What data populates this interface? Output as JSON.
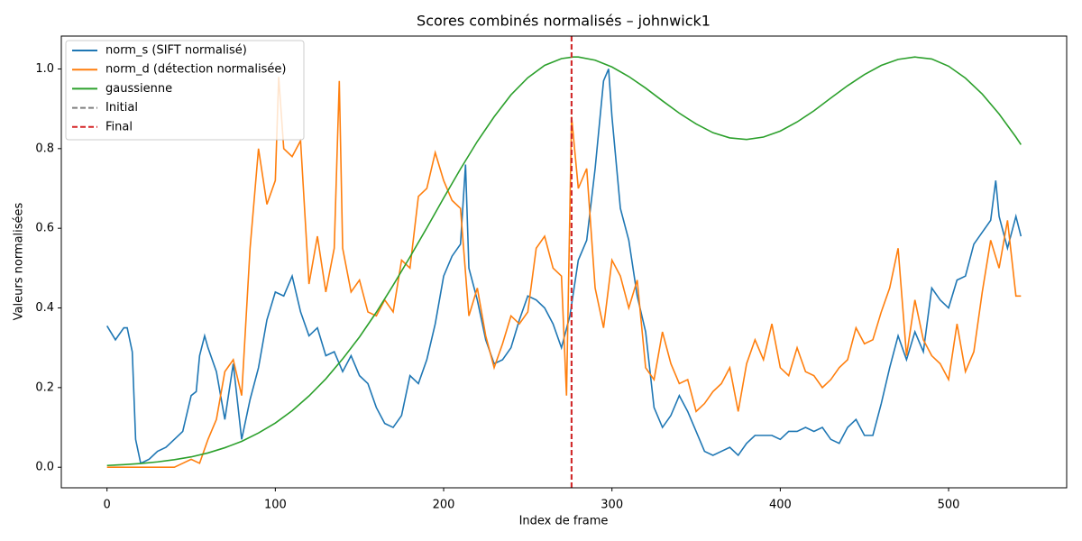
{
  "chart_data": {
    "type": "line",
    "title": "Scores combinés normalisés – johnwick1",
    "xlabel": "Index de frame",
    "ylabel": "Valeurs normalisées",
    "xlim": [
      -27.15,
      570.15
    ],
    "ylim": [
      -0.0516,
      1.0826
    ],
    "xticks": [
      0,
      100,
      200,
      300,
      400,
      500
    ],
    "yticks": [
      {
        "value": 0,
        "label": "0.0"
      },
      0.2,
      0.4,
      0.6,
      0.8,
      {
        "value": 1,
        "label": "1.0"
      }
    ],
    "grid": false,
    "legend": "upper left",
    "series": [
      {
        "name": "norm_s (SIFT normalisé)",
        "color": "#1f77b4",
        "x": [
          0,
          5,
          10,
          12,
          15,
          17,
          20,
          25,
          30,
          35,
          40,
          45,
          50,
          53,
          55,
          58,
          60,
          65,
          70,
          75,
          80,
          85,
          90,
          95,
          100,
          105,
          110,
          115,
          120,
          125,
          130,
          135,
          140,
          145,
          150,
          155,
          160,
          165,
          170,
          175,
          180,
          185,
          190,
          195,
          200,
          205,
          210,
          213,
          215,
          220,
          225,
          230,
          235,
          240,
          245,
          250,
          255,
          260,
          265,
          270,
          275,
          280,
          285,
          290,
          295,
          298,
          300,
          305,
          310,
          315,
          320,
          325,
          330,
          335,
          340,
          345,
          350,
          355,
          360,
          365,
          370,
          375,
          380,
          385,
          390,
          395,
          400,
          405,
          410,
          415,
          420,
          425,
          430,
          435,
          440,
          445,
          450,
          455,
          460,
          465,
          470,
          475,
          480,
          485,
          490,
          495,
          500,
          505,
          510,
          515,
          520,
          525,
          528,
          530,
          535,
          540,
          543
        ],
        "values": [
          0.355,
          0.32,
          0.35,
          0.35,
          0.29,
          0.07,
          0.01,
          0.02,
          0.04,
          0.05,
          0.07,
          0.09,
          0.18,
          0.19,
          0.28,
          0.33,
          0.3,
          0.24,
          0.12,
          0.26,
          0.07,
          0.17,
          0.25,
          0.37,
          0.44,
          0.43,
          0.48,
          0.39,
          0.33,
          0.35,
          0.28,
          0.29,
          0.24,
          0.28,
          0.23,
          0.21,
          0.15,
          0.11,
          0.1,
          0.13,
          0.23,
          0.21,
          0.27,
          0.36,
          0.48,
          0.53,
          0.56,
          0.76,
          0.5,
          0.42,
          0.32,
          0.26,
          0.27,
          0.3,
          0.37,
          0.43,
          0.42,
          0.4,
          0.36,
          0.3,
          0.38,
          0.52,
          0.57,
          0.75,
          0.97,
          1.0,
          0.88,
          0.65,
          0.57,
          0.43,
          0.34,
          0.15,
          0.1,
          0.13,
          0.18,
          0.14,
          0.09,
          0.04,
          0.03,
          0.04,
          0.05,
          0.03,
          0.06,
          0.08,
          0.08,
          0.08,
          0.07,
          0.09,
          0.09,
          0.1,
          0.09,
          0.1,
          0.07,
          0.06,
          0.1,
          0.12,
          0.08,
          0.08,
          0.16,
          0.25,
          0.33,
          0.27,
          0.34,
          0.29,
          0.45,
          0.42,
          0.4,
          0.47,
          0.48,
          0.56,
          0.59,
          0.62,
          0.72,
          0.63,
          0.55,
          0.63,
          0.58
        ]
      },
      {
        "name": "norm_d (détection normalisée)",
        "color": "#ff7f0e",
        "x": [
          0,
          5,
          10,
          15,
          20,
          25,
          30,
          35,
          40,
          45,
          50,
          55,
          60,
          65,
          70,
          75,
          80,
          85,
          90,
          95,
          100,
          102,
          105,
          110,
          115,
          120,
          125,
          130,
          135,
          138,
          140,
          145,
          150,
          155,
          160,
          165,
          170,
          175,
          180,
          185,
          190,
          195,
          200,
          205,
          210,
          215,
          220,
          225,
          230,
          235,
          240,
          245,
          250,
          255,
          260,
          265,
          270,
          273,
          276,
          280,
          285,
          290,
          295,
          300,
          305,
          310,
          315,
          320,
          325,
          330,
          335,
          340,
          345,
          350,
          355,
          360,
          365,
          370,
          375,
          380,
          385,
          390,
          395,
          400,
          405,
          410,
          415,
          420,
          425,
          430,
          435,
          440,
          445,
          450,
          455,
          460,
          465,
          470,
          475,
          480,
          485,
          490,
          495,
          500,
          505,
          510,
          515,
          520,
          525,
          530,
          535,
          540,
          543
        ],
        "values": [
          0,
          0,
          0,
          0,
          0,
          0,
          0,
          0,
          0,
          0.01,
          0.02,
          0.01,
          0.07,
          0.12,
          0.24,
          0.27,
          0.18,
          0.55,
          0.8,
          0.66,
          0.72,
          0.98,
          0.8,
          0.78,
          0.82,
          0.46,
          0.58,
          0.44,
          0.55,
          0.97,
          0.55,
          0.44,
          0.47,
          0.39,
          0.38,
          0.42,
          0.39,
          0.52,
          0.5,
          0.68,
          0.7,
          0.79,
          0.72,
          0.67,
          0.65,
          0.38,
          0.45,
          0.33,
          0.25,
          0.31,
          0.38,
          0.36,
          0.39,
          0.55,
          0.58,
          0.5,
          0.48,
          0.18,
          0.88,
          0.7,
          0.75,
          0.45,
          0.35,
          0.52,
          0.48,
          0.4,
          0.47,
          0.25,
          0.22,
          0.34,
          0.26,
          0.21,
          0.22,
          0.14,
          0.16,
          0.19,
          0.21,
          0.25,
          0.14,
          0.26,
          0.32,
          0.27,
          0.36,
          0.25,
          0.23,
          0.3,
          0.24,
          0.23,
          0.2,
          0.22,
          0.25,
          0.27,
          0.35,
          0.31,
          0.32,
          0.39,
          0.45,
          0.55,
          0.28,
          0.42,
          0.32,
          0.28,
          0.26,
          0.22,
          0.36,
          0.24,
          0.29,
          0.44,
          0.57,
          0.5,
          0.62,
          0.43,
          0.43
        ]
      },
      {
        "name": "gaussienne",
        "color": "#2ca02c",
        "x": [
          0,
          10,
          20,
          30,
          40,
          50,
          60,
          70,
          80,
          90,
          100,
          110,
          120,
          130,
          140,
          150,
          160,
          170,
          180,
          190,
          200,
          210,
          220,
          230,
          240,
          250,
          260,
          270,
          277,
          280,
          290,
          300,
          310,
          320,
          330,
          340,
          350,
          360,
          370,
          380,
          390,
          400,
          410,
          420,
          430,
          440,
          450,
          460,
          470,
          480,
          490,
          500,
          510,
          520,
          530,
          540,
          543
        ],
        "values": [
          0.0044,
          0.0065,
          0.0094,
          0.0135,
          0.019,
          0.026,
          0.036,
          0.049,
          0.065,
          0.086,
          0.111,
          0.142,
          0.179,
          0.222,
          0.272,
          0.327,
          0.389,
          0.457,
          0.528,
          0.601,
          0.676,
          0.749,
          0.818,
          0.88,
          0.935,
          0.978,
          1.009,
          1.026,
          1.03,
          1.03,
          1.022,
          1.005,
          0.981,
          0.952,
          0.92,
          0.889,
          0.862,
          0.84,
          0.827,
          0.823,
          0.829,
          0.844,
          0.867,
          0.895,
          0.927,
          0.958,
          0.986,
          1.009,
          1.024,
          1.03,
          1.025,
          1.007,
          0.977,
          0.937,
          0.887,
          0.829,
          0.81
        ]
      }
    ],
    "vlines": [
      {
        "name": "Initial",
        "color": "#7f7f7f",
        "x": 276
      },
      {
        "name": "Final",
        "color": "#d62728",
        "x": 276
      }
    ]
  }
}
